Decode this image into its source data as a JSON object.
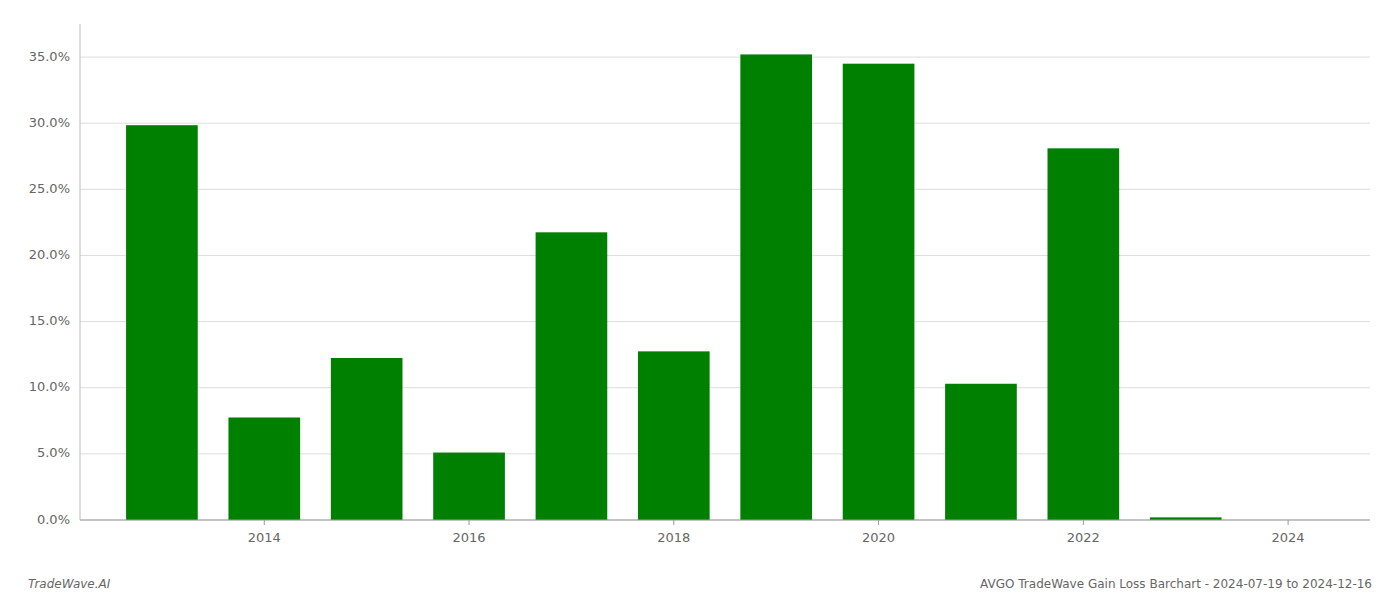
{
  "chart_data": {
    "type": "bar",
    "title": "AVGO TradeWave Gain Loss Barchart - 2024-07-19 to 2024-12-16",
    "annotations": [
      "TradeWave.AI"
    ],
    "x": [
      2013,
      2014,
      2015,
      2016,
      2017,
      2018,
      2019,
      2020,
      2021,
      2022,
      2023
    ],
    "values": [
      0.2985,
      0.0775,
      0.1225,
      0.051,
      0.2175,
      0.1275,
      0.352,
      0.345,
      0.103,
      0.281,
      0.002
    ],
    "color": "#008000",
    "xlim": [
      2012.2,
      2024.8
    ],
    "xticks": [
      2014,
      2016,
      2018,
      2020,
      2022,
      2024
    ],
    "ylim": [
      0.0,
      0.375
    ],
    "yticks": [
      {
        "value": 0.0,
        "label": "0.0%"
      },
      {
        "value": 0.05,
        "label": "5.0%"
      },
      {
        "value": 0.1,
        "label": "10.0%"
      },
      {
        "value": 0.15,
        "label": "15.0%"
      },
      {
        "value": 0.2,
        "label": "20.0%"
      },
      {
        "value": 0.25,
        "label": "25.0%"
      },
      {
        "value": 0.3,
        "label": "30.0%"
      },
      {
        "value": 0.35,
        "label": "35.0%"
      }
    ],
    "grid": true
  }
}
